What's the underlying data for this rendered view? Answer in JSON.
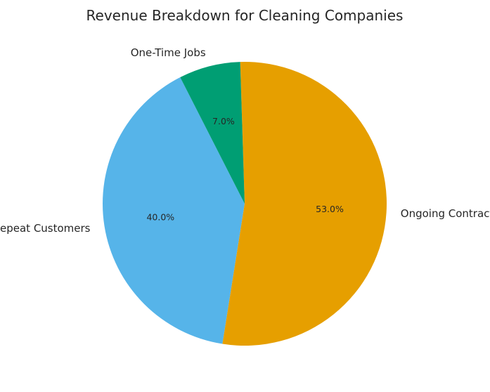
{
  "chart_data": {
    "type": "pie",
    "title": "Revenue Breakdown for Cleaning Companies",
    "start_angle_deg": 117,
    "direction": "counterclockwise",
    "slices": [
      {
        "label": "Repeat Customers",
        "value": 40.0,
        "pct_label": "40.0%",
        "color": "#56b4e9"
      },
      {
        "label": "Ongoing Contracts",
        "value": 53.0,
        "pct_label": "53.0%",
        "color": "#e69f00"
      },
      {
        "label": "One-Time Jobs",
        "value": 7.0,
        "pct_label": "7.0%",
        "color": "#009e73"
      }
    ]
  }
}
